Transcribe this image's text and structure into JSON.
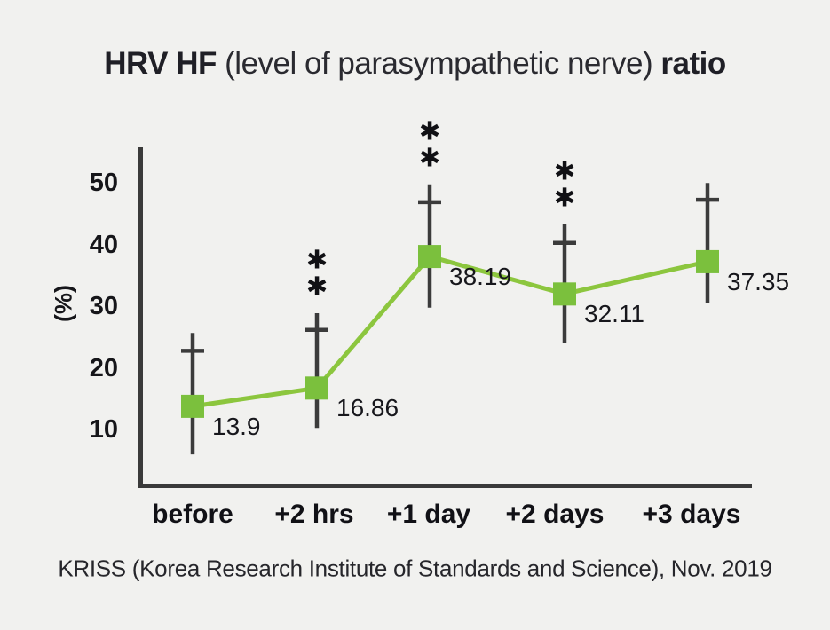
{
  "title": {
    "bold_lead": "HRV HF",
    "normal_mid": " (level of parasympathetic nerve) ",
    "bold_tail": "ratio"
  },
  "caption": "KRISS (Korea Research Institute of Standards and Science), Nov. 2019",
  "chart_data": {
    "type": "line",
    "title": "HRV HF (level of parasympathetic nerve) ratio",
    "xlabel": "",
    "ylabel": "(%)",
    "categories": [
      "before",
      "+2 hrs",
      "+1 day",
      "+2 days",
      "+3 days"
    ],
    "series": [
      {
        "name": "HRV HF ratio (%)",
        "values": [
          13.9,
          16.86,
          38.19,
          32.11,
          37.35
        ],
        "value_labels": [
          "13.9",
          "16.86",
          "38.19",
          "32.11",
          "37.35"
        ],
        "error_upper_tip": [
          25.8,
          29.0,
          49.9,
          43.4,
          50.1
        ],
        "error_upper_cap": [
          22.9,
          26.3,
          47.0,
          40.4,
          47.4
        ],
        "error_lower_tip": [
          6.1,
          10.4,
          29.9,
          24.1,
          30.6
        ],
        "significance": [
          "",
          "**",
          "**",
          "**",
          ""
        ]
      }
    ],
    "yticks": [
      10,
      20,
      30,
      40,
      50
    ],
    "ylim": [
      0.6,
      56.5
    ],
    "grid": false,
    "legend": false,
    "marker": "square",
    "colors": {
      "line": "#8cc63e",
      "marker": "#7bc03d",
      "error_bar": "#3b3b3b",
      "axis": "#3a3a3a",
      "significance": "#101014"
    }
  }
}
